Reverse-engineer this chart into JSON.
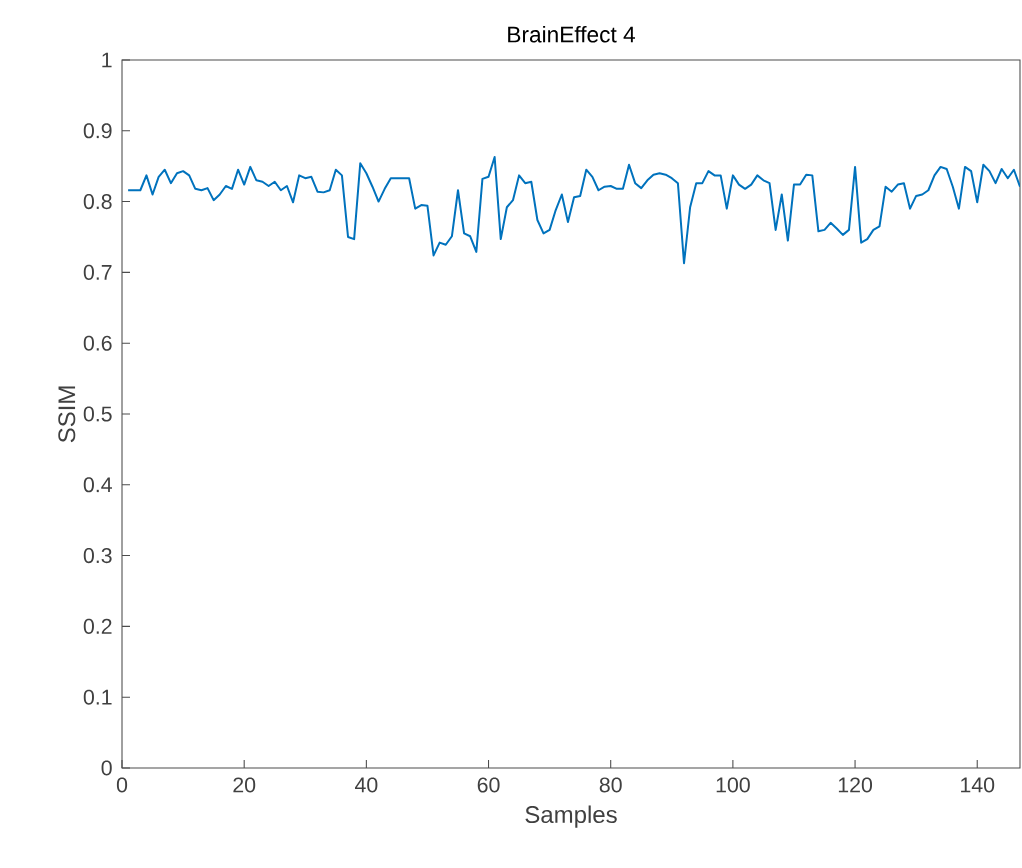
{
  "chart_data": {
    "type": "line",
    "title": "BrainEffect 4",
    "xlabel": "Samples",
    "ylabel": "SSIM",
    "xlim": [
      0,
      147
    ],
    "ylim": [
      0,
      1
    ],
    "xticks": [
      0,
      20,
      40,
      60,
      80,
      100,
      120,
      140
    ],
    "yticks": [
      0,
      0.1,
      0.2,
      0.3,
      0.4,
      0.5,
      0.6,
      0.7,
      0.8,
      0.9,
      1
    ],
    "x": [
      1,
      2,
      3,
      4,
      5,
      6,
      7,
      8,
      9,
      10,
      11,
      12,
      13,
      14,
      15,
      16,
      17,
      18,
      19,
      20,
      21,
      22,
      23,
      24,
      25,
      26,
      27,
      28,
      29,
      30,
      31,
      32,
      33,
      34,
      35,
      36,
      37,
      38,
      39,
      40,
      41,
      42,
      43,
      44,
      45,
      46,
      47,
      48,
      49,
      50,
      51,
      52,
      53,
      54,
      55,
      56,
      57,
      58,
      59,
      60,
      61,
      62,
      63,
      64,
      65,
      66,
      67,
      68,
      69,
      70,
      71,
      72,
      73,
      74,
      75,
      76,
      77,
      78,
      79,
      80,
      81,
      82,
      83,
      84,
      85,
      86,
      87,
      88,
      89,
      90,
      91,
      92,
      93,
      94,
      95,
      96,
      97,
      98,
      99,
      100,
      101,
      102,
      103,
      104,
      105,
      106,
      107,
      108,
      109,
      110,
      111,
      112,
      113,
      114,
      115,
      116,
      117,
      118,
      119,
      120,
      121,
      122,
      123,
      124,
      125,
      126,
      127,
      128,
      129,
      130,
      131,
      132,
      133,
      134,
      135,
      136,
      137,
      138,
      139,
      140,
      141,
      142,
      143,
      144,
      145,
      146,
      147
    ],
    "series": [
      {
        "color": "#0072bd",
        "values": [
          0.816,
          0.816,
          0.816,
          0.837,
          0.81,
          0.835,
          0.845,
          0.826,
          0.84,
          0.843,
          0.837,
          0.818,
          0.816,
          0.819,
          0.802,
          0.81,
          0.822,
          0.818,
          0.845,
          0.824,
          0.849,
          0.83,
          0.828,
          0.822,
          0.828,
          0.816,
          0.822,
          0.799,
          0.837,
          0.833,
          0.835,
          0.814,
          0.813,
          0.816,
          0.845,
          0.837,
          0.75,
          0.747,
          0.854,
          0.84,
          0.821,
          0.8,
          0.818,
          0.833,
          0.833,
          0.833,
          0.833,
          0.79,
          0.795,
          0.794,
          0.724,
          0.742,
          0.739,
          0.751,
          0.816,
          0.755,
          0.751,
          0.729,
          0.832,
          0.835,
          0.863,
          0.747,
          0.792,
          0.802,
          0.837,
          0.826,
          0.828,
          0.774,
          0.755,
          0.76,
          0.788,
          0.81,
          0.771,
          0.806,
          0.808,
          0.845,
          0.835,
          0.816,
          0.821,
          0.822,
          0.818,
          0.818,
          0.852,
          0.826,
          0.819,
          0.83,
          0.838,
          0.84,
          0.838,
          0.833,
          0.826,
          0.713,
          0.792,
          0.826,
          0.826,
          0.843,
          0.837,
          0.837,
          0.79,
          0.837,
          0.824,
          0.818,
          0.824,
          0.837,
          0.83,
          0.826,
          0.76,
          0.81,
          0.745,
          0.824,
          0.824,
          0.838,
          0.837,
          0.758,
          0.76,
          0.77,
          0.762,
          0.753,
          0.76,
          0.849,
          0.742,
          0.747,
          0.76,
          0.765,
          0.821,
          0.814,
          0.824,
          0.826,
          0.79,
          0.808,
          0.81,
          0.816,
          0.837,
          0.849,
          0.846,
          0.821,
          0.79,
          0.849,
          0.843,
          0.799,
          0.852,
          0.843,
          0.826,
          0.846,
          0.833,
          0.845,
          0.821
        ]
      }
    ],
    "line_style": "solid"
  }
}
